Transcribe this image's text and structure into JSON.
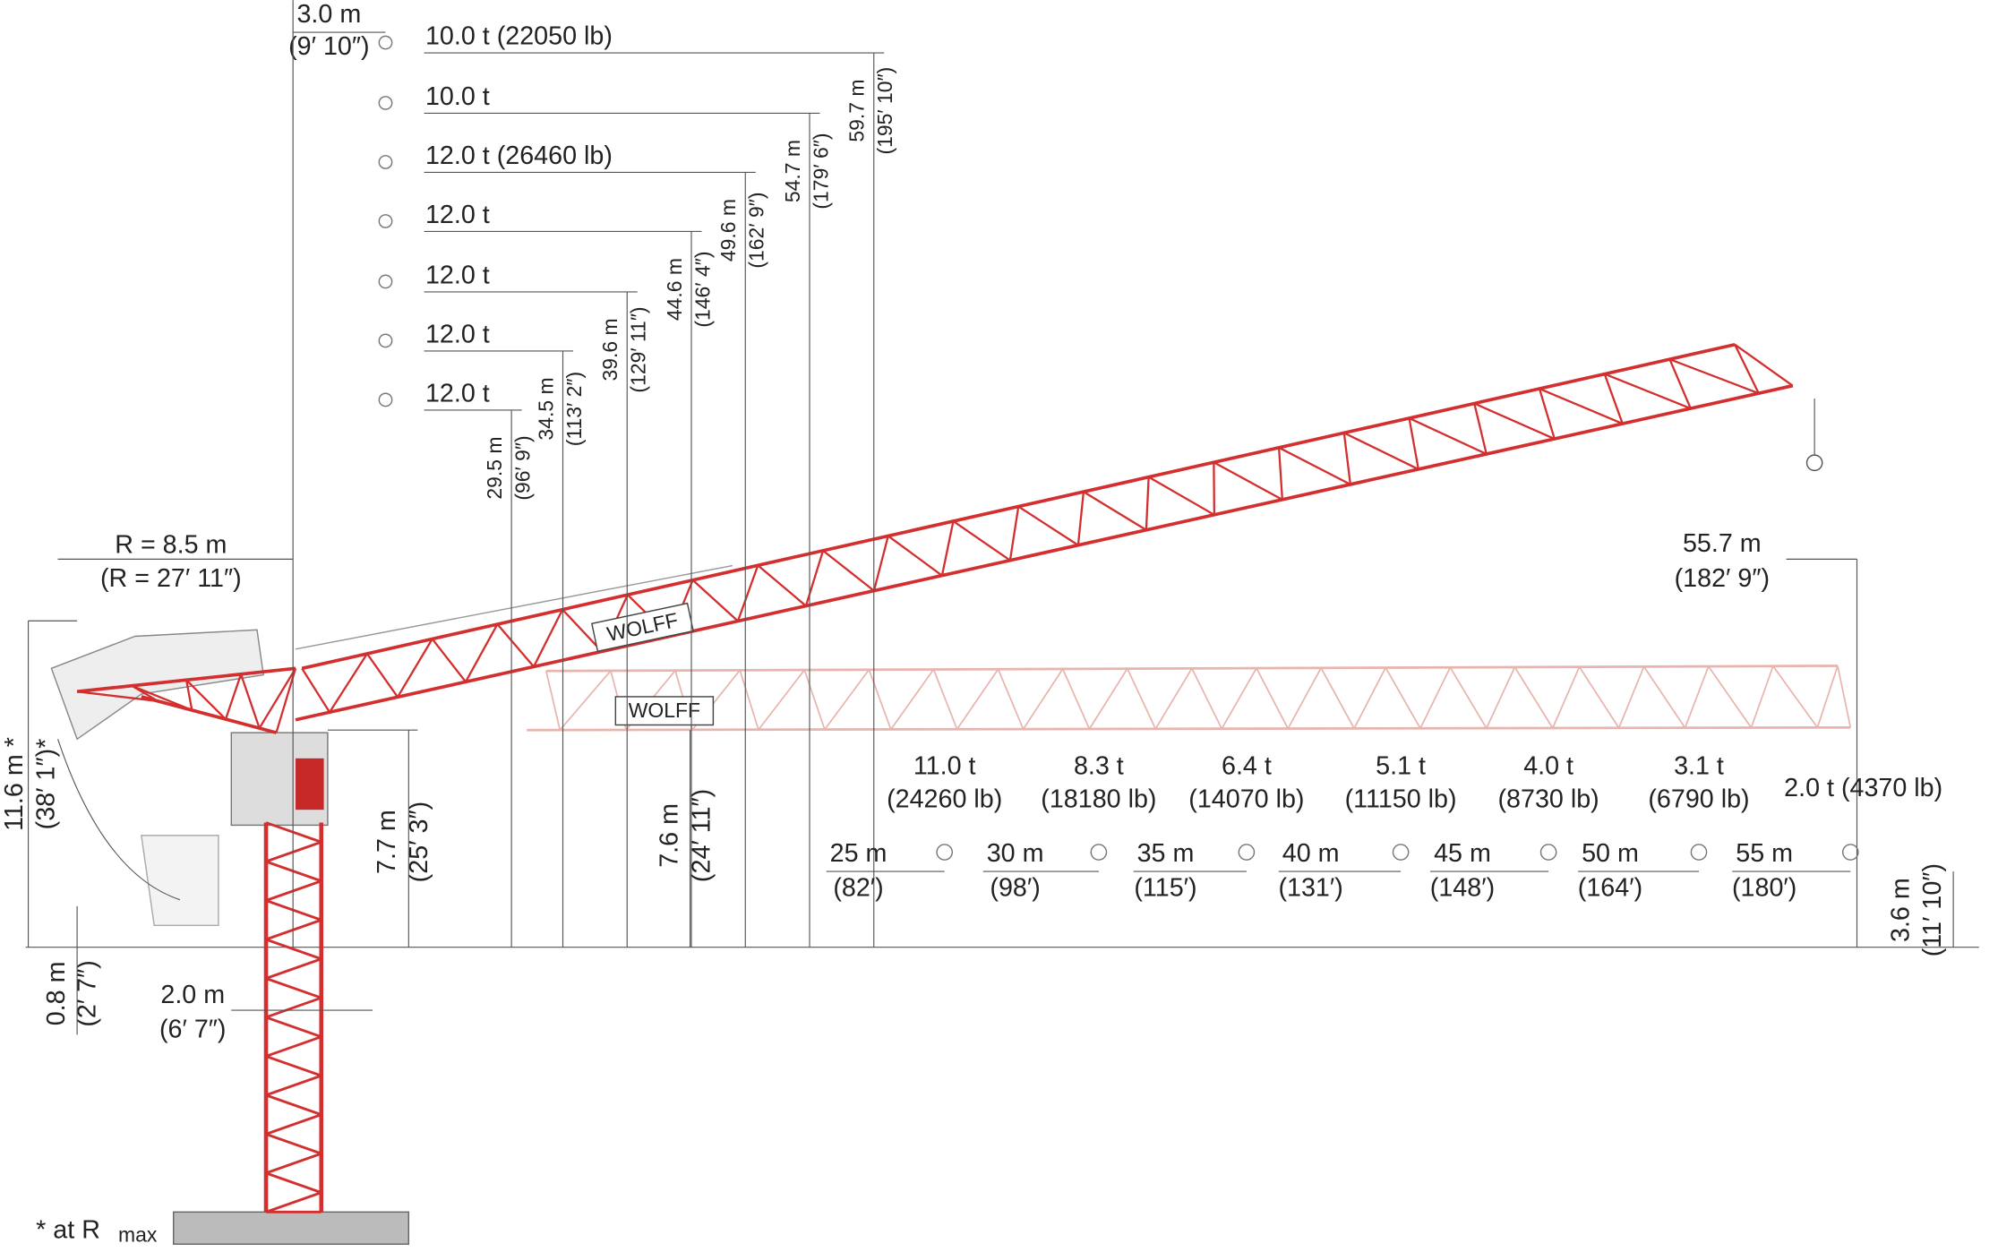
{
  "top_dimension": {
    "metric": "3.0 m",
    "imperial": "(9′ 10″)"
  },
  "jib_positions": [
    {
      "load": "10.0 t (22050 lb)",
      "height": "59.7 m",
      "height_imperial": "(195′ 10″)"
    },
    {
      "load": "10.0 t",
      "height": "54.7 m",
      "height_imperial": "(179′ 6″)"
    },
    {
      "load": "12.0 t (26460 lb)",
      "height": "49.6 m",
      "height_imperial": "(162′ 9″)"
    },
    {
      "load": "12.0 t",
      "height": "44.6 m",
      "height_imperial": "(146′ 4″)"
    },
    {
      "load": "12.0 t",
      "height": "39.6 m",
      "height_imperial": "(129′ 11″)"
    },
    {
      "load": "12.0 t",
      "height": "34.5 m",
      "height_imperial": "(113′ 2″)"
    },
    {
      "load": "12.0 t",
      "height": "29.5 m",
      "height_imperial": "(96′ 9″)"
    }
  ],
  "dimensions": {
    "counter_jib_radius": {
      "metric": "R = 8.5 m",
      "imperial": "(R = 27′ 11″)"
    },
    "tail_height": {
      "metric": "11.6 m *",
      "imperial": "(38′ 1″)*"
    },
    "jib_pivot_height": {
      "metric": "7.7 m",
      "imperial": "(25′ 3″)"
    },
    "jib_height": {
      "metric": "7.6 m",
      "imperial": "(24′ 11″)"
    },
    "ballast_clearance": {
      "metric": "0.8 m",
      "imperial": "(2′ 7″)"
    },
    "tower_width": {
      "metric": "2.0 m",
      "imperial": "(6′ 7″)"
    },
    "max_radius": {
      "metric": "55.7 m",
      "imperial": "(182′ 9″)"
    },
    "hook_height": {
      "metric": "3.6 m",
      "imperial": "(11′ 10″)"
    }
  },
  "radius_chart": [
    {
      "load": "11.0 t",
      "load_imperial": "(24260 lb)",
      "radius": "25 m",
      "radius_imperial": "(82′)"
    },
    {
      "load": "8.3 t",
      "load_imperial": "(18180 lb)",
      "radius": "30 m",
      "radius_imperial": "(98′)"
    },
    {
      "load": "6.4 t",
      "load_imperial": "(14070 lb)",
      "radius": "35 m",
      "radius_imperial": "(115′)"
    },
    {
      "load": "5.1 t",
      "load_imperial": "(11150 lb)",
      "radius": "40 m",
      "radius_imperial": "(131′)"
    },
    {
      "load": "4.0 t",
      "load_imperial": "(8730 lb)",
      "radius": "45 m",
      "radius_imperial": "(148′)"
    },
    {
      "load": "3.1 t",
      "load_imperial": "(6790 lb)",
      "radius": "50 m",
      "radius_imperial": "(164′)"
    },
    {
      "load": "2.0 t (4370 lb)",
      "radius": "55 m",
      "radius_imperial": "(180′)"
    }
  ],
  "brand": "WOLFF",
  "footnote": {
    "text": "* at R",
    "subscript": "max"
  }
}
